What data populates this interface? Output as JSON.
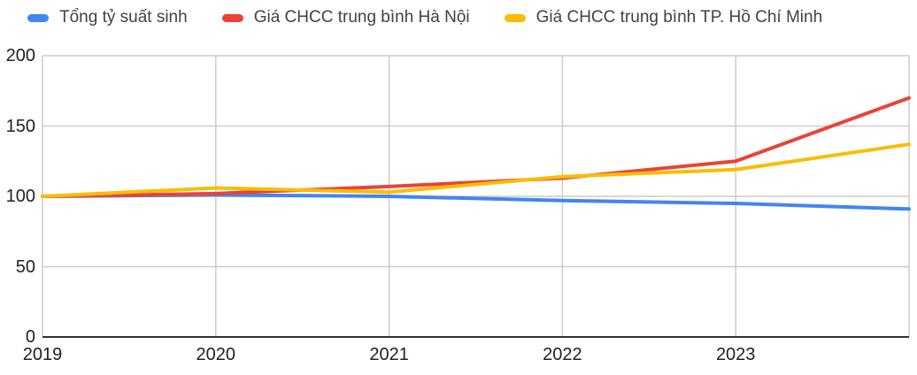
{
  "chart_data": {
    "type": "line",
    "x": [
      2019,
      2020,
      2021,
      2022,
      2023,
      2024
    ],
    "x_tick_labels": [
      "2019",
      "2020",
      "2021",
      "2022",
      "2023"
    ],
    "x_gridlines": [
      2019,
      2020,
      2021,
      2022,
      2023,
      2024
    ],
    "y_ticks": [
      0,
      50,
      100,
      150,
      200
    ],
    "xlim": [
      2019,
      2024
    ],
    "ylim": [
      0,
      200
    ],
    "grid": true,
    "legend_position": "top",
    "title": "",
    "xlabel": "",
    "ylabel": "",
    "series": [
      {
        "name": "Tổng tỷ suất sinh",
        "color": "#4285F4",
        "values": [
          100,
          101,
          100,
          97,
          95,
          91
        ]
      },
      {
        "name": "Giá CHCC trung bình Hà Nội",
        "color": "#EA4335",
        "values": [
          100,
          102,
          107,
          113,
          125,
          170
        ]
      },
      {
        "name": "Giá CHCC trung bình TP. Hồ Chí Minh",
        "color": "#FBBC05",
        "values": [
          100,
          106,
          103,
          114,
          119,
          137
        ]
      }
    ]
  },
  "colors": {
    "background": "#ffffff",
    "gridline": "#cccccc",
    "axis_line": "#333333",
    "tick_text": "#212121",
    "legend_text": "#424242"
  }
}
